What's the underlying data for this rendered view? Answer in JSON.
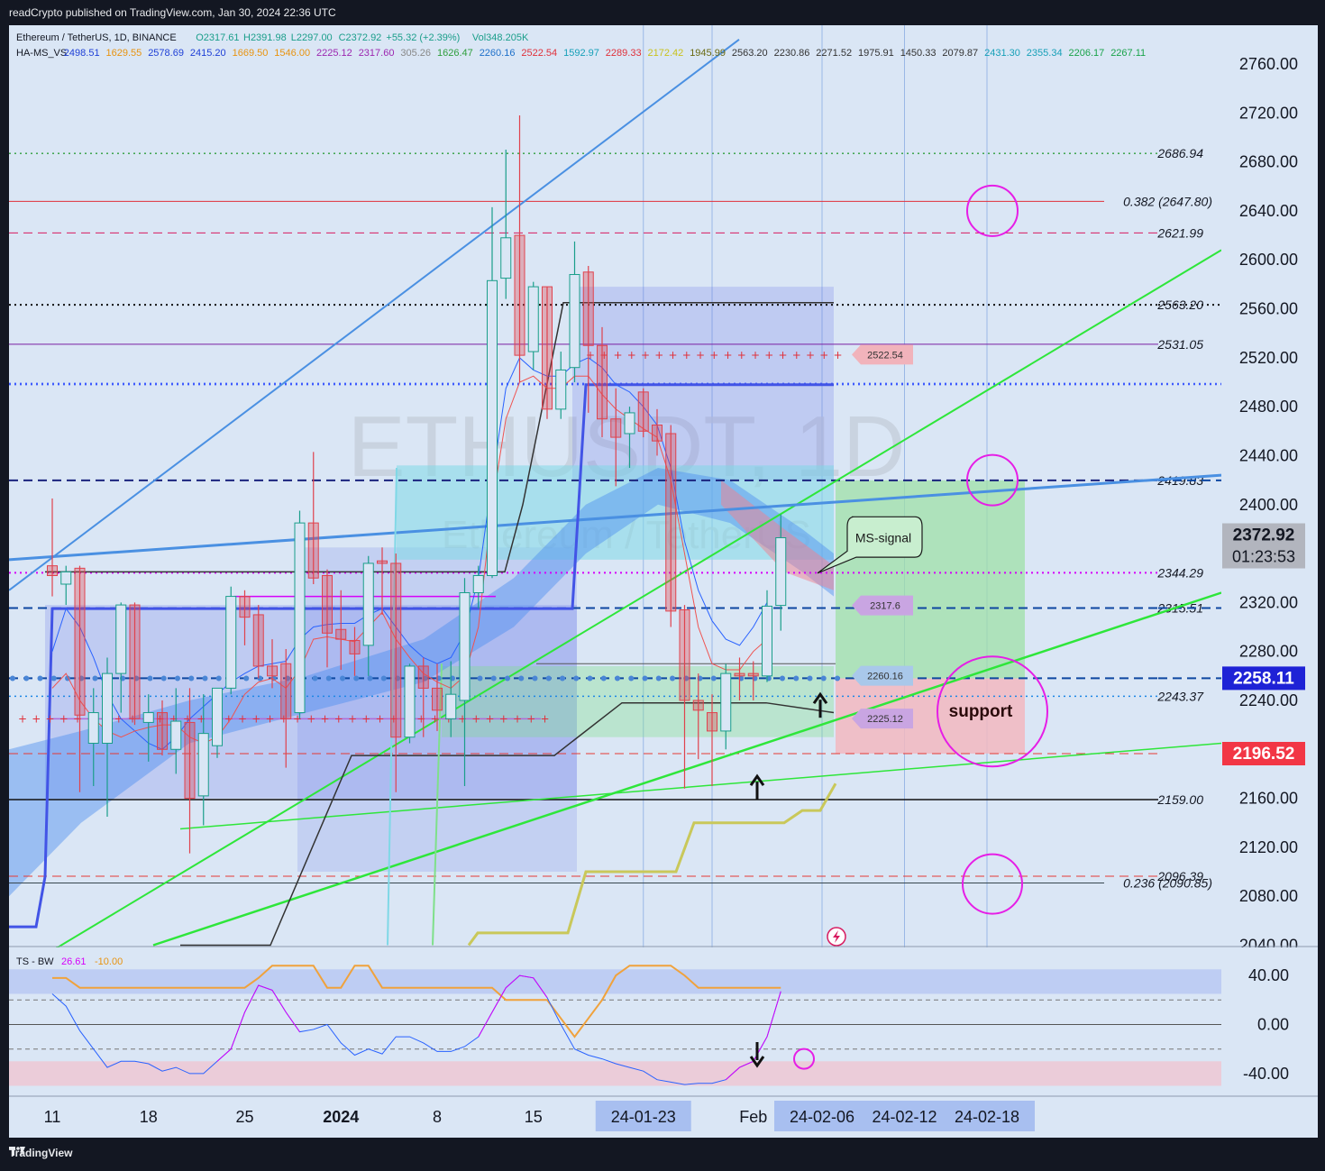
{
  "publisher": "readCrypto published on TradingView.com, Jan 30, 2024 22:36 UTC",
  "footer_brand": "TradingView",
  "watermark": {
    "symbol": "ETHUSDT, 1D",
    "name": "Ethereum / TetherUS"
  },
  "legend": {
    "symbol": "Ethereum / TetherUS, 1D, BINANCE",
    "ohlc": {
      "O": "2317.61",
      "H": "2391.98",
      "L": "2297.00",
      "C": "2372.92"
    },
    "change": "+55.32 (+2.39%)",
    "volume": "Vol348.205K",
    "ind_name": "HA-MS_VS",
    "ind_values": [
      {
        "v": "2498.51",
        "color": "#1e3fd6"
      },
      {
        "v": "1629.55",
        "color": "#e8930f"
      },
      {
        "v": "2578.69",
        "color": "#1e3fd6"
      },
      {
        "v": "2415.20",
        "color": "#1e3fd6"
      },
      {
        "v": "1669.50",
        "color": "#e8930f"
      },
      {
        "v": "1546.00",
        "color": "#e8930f"
      },
      {
        "v": "2225.12",
        "color": "#9c27b0"
      },
      {
        "v": "2317.60",
        "color": "#9c27b0"
      },
      {
        "v": "305.26",
        "color": "#888888"
      },
      {
        "v": "1626.47",
        "color": "#2e9e3c"
      },
      {
        "v": "2260.16",
        "color": "#1e70c9"
      },
      {
        "v": "2522.54",
        "color": "#e0303a"
      },
      {
        "v": "1592.97",
        "color": "#17a0b8"
      },
      {
        "v": "2289.33",
        "color": "#e0303a"
      },
      {
        "v": "2172.42",
        "color": "#c9c21d"
      },
      {
        "v": "1945.99",
        "color": "#6a6a14"
      },
      {
        "v": "2563.20",
        "color": "#333333"
      },
      {
        "v": "2230.86",
        "color": "#333333"
      },
      {
        "v": "2271.52",
        "color": "#333333"
      },
      {
        "v": "1975.91",
        "color": "#333333"
      },
      {
        "v": "1450.33",
        "color": "#333333"
      },
      {
        "v": "2079.87",
        "color": "#333333"
      },
      {
        "v": "2431.30",
        "color": "#17a0b8"
      },
      {
        "v": "2355.34",
        "color": "#17a0b8"
      },
      {
        "v": "2206.17",
        "color": "#1aa34a"
      },
      {
        "v": "2267.11",
        "color": "#1aa34a"
      }
    ]
  },
  "colors": {
    "up": "#1a9e8a",
    "down": "#e0424d",
    "upfill": "#d9e6f5",
    "downfill": "#e0424d"
  },
  "chart_data": {
    "type": "candlestick",
    "symbol": "ETHUSDT",
    "timeframe": "1D",
    "ylim": [
      2040,
      2780
    ],
    "y_ticks": [
      "2760.00",
      "2720.00",
      "2680.00",
      "2640.00",
      "2600.00",
      "2560.00",
      "2520.00",
      "2480.00",
      "2440.00",
      "2400.00",
      "2360.00",
      "2320.00",
      "2280.00",
      "2240.00",
      "2200.00",
      "2160.00",
      "2120.00",
      "2080.00",
      "2040.00"
    ],
    "x_labels": [
      {
        "day": 0,
        "text": "11"
      },
      {
        "day": 7,
        "text": "18"
      },
      {
        "day": 14,
        "text": "25"
      },
      {
        "day": 21,
        "text": "2024"
      },
      {
        "day": 28,
        "text": "8"
      },
      {
        "day": 35,
        "text": "15"
      },
      {
        "day": 43,
        "text": "24-01-23",
        "highlight": true
      },
      {
        "day": 51,
        "text": "Feb"
      },
      {
        "day": 56,
        "text": "24-02-06",
        "highlight": true
      },
      {
        "day": 62,
        "text": "24-02-12",
        "highlight": true
      },
      {
        "day": 68,
        "text": "24-02-18",
        "highlight": true
      }
    ],
    "candles": [
      {
        "o": 2350,
        "h": 2405,
        "l": 2325,
        "c": 2342
      },
      {
        "o": 2335,
        "h": 2350,
        "l": 2318,
        "c": 2345
      },
      {
        "o": 2348,
        "h": 2350,
        "l": 2165,
        "c": 2228
      },
      {
        "o": 2205,
        "h": 2250,
        "l": 2170,
        "c": 2230
      },
      {
        "o": 2205,
        "h": 2275,
        "l": 2145,
        "c": 2262
      },
      {
        "o": 2262,
        "h": 2320,
        "l": 2230,
        "c": 2318
      },
      {
        "o": 2318,
        "h": 2320,
        "l": 2220,
        "c": 2225
      },
      {
        "o": 2222,
        "h": 2245,
        "l": 2190,
        "c": 2230
      },
      {
        "o": 2230,
        "h": 2240,
        "l": 2195,
        "c": 2200
      },
      {
        "o": 2200,
        "h": 2250,
        "l": 2180,
        "c": 2223
      },
      {
        "o": 2222,
        "h": 2250,
        "l": 2115,
        "c": 2160
      },
      {
        "o": 2162,
        "h": 2245,
        "l": 2138,
        "c": 2213
      },
      {
        "o": 2203,
        "h": 2245,
        "l": 2193,
        "c": 2250
      },
      {
        "o": 2250,
        "h": 2333,
        "l": 2245,
        "c": 2325
      },
      {
        "o": 2325,
        "h": 2330,
        "l": 2285,
        "c": 2308
      },
      {
        "o": 2310,
        "h": 2318,
        "l": 2258,
        "c": 2268
      },
      {
        "o": 2268,
        "h": 2290,
        "l": 2250,
        "c": 2260
      },
      {
        "o": 2270,
        "h": 2282,
        "l": 2185,
        "c": 2225
      },
      {
        "o": 2230,
        "h": 2395,
        "l": 2225,
        "c": 2385
      },
      {
        "o": 2385,
        "h": 2443,
        "l": 2335,
        "c": 2340
      },
      {
        "o": 2342,
        "h": 2347,
        "l": 2267,
        "c": 2295
      },
      {
        "o": 2298,
        "h": 2330,
        "l": 2265,
        "c": 2290
      },
      {
        "o": 2289,
        "h": 2300,
        "l": 2260,
        "c": 2278
      },
      {
        "o": 2285,
        "h": 2358,
        "l": 2260,
        "c": 2352
      },
      {
        "o": 2354,
        "h": 2365,
        "l": 2310,
        "c": 2352
      },
      {
        "o": 2352,
        "h": 2360,
        "l": 2165,
        "c": 2210
      },
      {
        "o": 2210,
        "h": 2270,
        "l": 2205,
        "c": 2268
      },
      {
        "o": 2268,
        "h": 2275,
        "l": 2210,
        "c": 2250
      },
      {
        "o": 2250,
        "h": 2270,
        "l": 2215,
        "c": 2232
      },
      {
        "o": 2225,
        "h": 2272,
        "l": 2210,
        "c": 2245
      },
      {
        "o": 2240,
        "h": 2340,
        "l": 2170,
        "c": 2328
      },
      {
        "o": 2328,
        "h": 2350,
        "l": 2315,
        "c": 2342
      },
      {
        "o": 2342,
        "h": 2643,
        "l": 2340,
        "c": 2583
      },
      {
        "o": 2585,
        "h": 2690,
        "l": 2568,
        "c": 2618
      },
      {
        "o": 2620,
        "h": 2718,
        "l": 2500,
        "c": 2522
      },
      {
        "o": 2525,
        "h": 2582,
        "l": 2510,
        "c": 2578
      },
      {
        "o": 2578,
        "h": 2578,
        "l": 2470,
        "c": 2478
      },
      {
        "o": 2478,
        "h": 2525,
        "l": 2470,
        "c": 2510
      },
      {
        "o": 2512,
        "h": 2615,
        "l": 2500,
        "c": 2588
      },
      {
        "o": 2590,
        "h": 2595,
        "l": 2475,
        "c": 2530
      },
      {
        "o": 2530,
        "h": 2545,
        "l": 2455,
        "c": 2470
      },
      {
        "o": 2470,
        "h": 2495,
        "l": 2415,
        "c": 2455
      },
      {
        "o": 2458,
        "h": 2480,
        "l": 2430,
        "c": 2475
      },
      {
        "o": 2492,
        "h": 2495,
        "l": 2455,
        "c": 2460
      },
      {
        "o": 2465,
        "h": 2478,
        "l": 2440,
        "c": 2452
      },
      {
        "o": 2458,
        "h": 2465,
        "l": 2300,
        "c": 2313
      },
      {
        "o": 2314,
        "h": 2318,
        "l": 2168,
        "c": 2240
      },
      {
        "o": 2240,
        "h": 2262,
        "l": 2192,
        "c": 2232
      },
      {
        "o": 2230,
        "h": 2245,
        "l": 2170,
        "c": 2215
      },
      {
        "o": 2215,
        "h": 2270,
        "l": 2200,
        "c": 2262
      },
      {
        "o": 2262,
        "h": 2275,
        "l": 2240,
        "c": 2260
      },
      {
        "o": 2262,
        "h": 2272,
        "l": 2240,
        "c": 2260
      },
      {
        "o": 2260,
        "h": 2330,
        "l": 2255,
        "c": 2317
      },
      {
        "o": 2317.61,
        "h": 2391.98,
        "l": 2297,
        "c": 2372.92
      }
    ],
    "price_levels": [
      {
        "value": 2686.94,
        "label": "2686.94",
        "color": "#2e9e3c",
        "style": "dotted",
        "width": 1.3
      },
      {
        "value": 2647.8,
        "label": "0.382 (2647.80)",
        "color": "#e0303a",
        "style": "solid",
        "width": 1,
        "fib": true
      },
      {
        "value": 2621.99,
        "label": "2621.99",
        "color": "#d81b60",
        "style": "dashed",
        "width": 1
      },
      {
        "value": 2563.2,
        "label": "2563.20",
        "color": "#111111",
        "style": "dotted",
        "width": 2
      },
      {
        "value": 2531.05,
        "label": "2531.05",
        "color": "#7b1fa2",
        "style": "solid",
        "width": 1
      },
      {
        "value": 2498.51,
        "label": "",
        "color": "#3d5afe",
        "style": "dotted",
        "width": 2.5
      },
      {
        "value": 2419.83,
        "label": "2419.83",
        "color": "#1a237e",
        "style": "dashed",
        "width": 2
      },
      {
        "value": 2344.29,
        "label": "2344.29",
        "color": "#d500f9",
        "style": "dotted",
        "width": 2
      },
      {
        "value": 2315.51,
        "label": "2315.51",
        "color": "#0d47a1",
        "style": "dashed",
        "width": 2
      },
      {
        "value": 2258.11,
        "label": "",
        "color": "#0d47a1",
        "style": "dashed",
        "width": 2
      },
      {
        "value": 2243.37,
        "label": "2243.37",
        "color": "#1e88e5",
        "style": "dotted",
        "width": 1.5
      },
      {
        "value": 2196.52,
        "label": "",
        "color": "#e53935",
        "style": "dashed",
        "width": 1
      },
      {
        "value": 2159.0,
        "label": "2159.00",
        "color": "#111111",
        "style": "solid",
        "width": 1.5
      },
      {
        "value": 2096.39,
        "label": "2096.39",
        "color": "#e53935",
        "style": "dashed",
        "width": 1
      },
      {
        "value": 2090.85,
        "label": "0.236 (2090.85)",
        "color": "#37474f",
        "style": "solid",
        "width": 1,
        "fib": true
      }
    ],
    "price_tags": [
      {
        "value": 2372.92,
        "text": "2372.92",
        "text2": "01:23:53",
        "bg": "#b2b5be",
        "fg": "#131722"
      },
      {
        "value": 2258.11,
        "text": "2258.11",
        "bg": "#1e22d6",
        "fg": "#ffffff"
      },
      {
        "value": 2196.52,
        "text": "2196.52",
        "bg": "#f23645",
        "fg": "#ffffff"
      }
    ],
    "indicator_tags": [
      {
        "value": 2522.54,
        "text": "2522.54",
        "bg": "#f1b3bb"
      },
      {
        "value": 2317.6,
        "text": "2317.6",
        "bg": "#c9a5e2"
      },
      {
        "value": 2260.16,
        "text": "2260.16",
        "bg": "#a9c8ea"
      },
      {
        "value": 2225.12,
        "text": "2225.12",
        "bg": "#c9a5e2"
      }
    ],
    "annotations": {
      "callout": "MS-signal",
      "support": "support"
    },
    "oscillator": {
      "name": "TS - BW",
      "values_text": [
        "26.61",
        "-10.00"
      ],
      "ylim": [
        -55,
        55
      ],
      "ticks": [
        "40.00",
        "0.00",
        "-40.00"
      ],
      "zones": [
        {
          "from": 25,
          "to": 45,
          "color": "#b7c7f2"
        },
        {
          "from": -30,
          "to": -50,
          "color": "#efc6d2"
        }
      ],
      "bw": [
        38,
        38,
        30,
        30,
        30,
        30,
        30,
        30,
        30,
        30,
        30,
        30,
        30,
        30,
        30,
        38,
        48,
        48,
        48,
        48,
        30,
        30,
        48,
        48,
        30,
        30,
        30,
        30,
        30,
        30,
        30,
        30,
        30,
        20,
        20,
        20,
        20,
        5,
        -10,
        5,
        20,
        40,
        48,
        48,
        48,
        48,
        40,
        30,
        30,
        30,
        30,
        30,
        30,
        30,
        30,
        30,
        30,
        30,
        -35,
        -35,
        -35,
        -35,
        -35,
        -35,
        -50,
        -50,
        -50,
        -50,
        -20,
        -10
      ],
      "ts": [
        25,
        15,
        -5,
        -20,
        -35,
        -30,
        -30,
        -32,
        -38,
        -35,
        -40,
        -40,
        -30,
        -20,
        10,
        32,
        28,
        10,
        -6,
        -4,
        0,
        -15,
        -25,
        -20,
        -24,
        -10,
        -10,
        -15,
        -22,
        -22,
        -18,
        -10,
        10,
        30,
        40,
        38,
        22,
        0,
        -20,
        -25,
        -28,
        -32,
        -35,
        -38,
        -45,
        -47,
        -49,
        -48,
        -48,
        -45,
        -35,
        -30,
        -10,
        27
      ],
      "ts_colors": [
        "#2962ff",
        "#d500f9"
      ],
      "bw_color": "#f0a23c"
    }
  }
}
